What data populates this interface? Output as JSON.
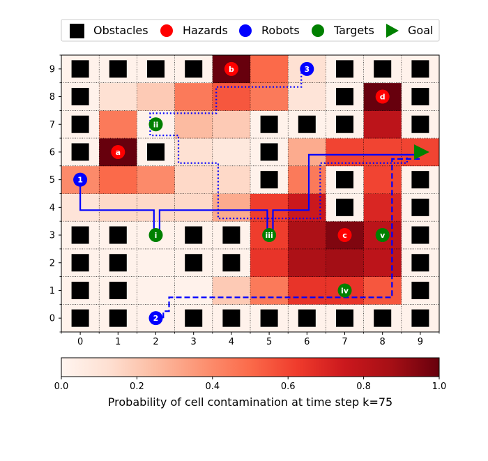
{
  "chart_data": {
    "type": "heatmap",
    "title": "",
    "xlabel": "",
    "ylabel": "",
    "x_ticks": [
      0,
      1,
      2,
      3,
      4,
      5,
      6,
      7,
      8,
      9
    ],
    "y_ticks": [
      0,
      1,
      2,
      3,
      4,
      5,
      6,
      7,
      8,
      9
    ],
    "xlim": [
      -0.5,
      9.5
    ],
    "ylim": [
      -0.5,
      9.5
    ],
    "grid": "dotted",
    "colormap": "Reds",
    "contamination": [
      [
        0.02,
        0.02,
        0.02,
        0.02,
        0.02,
        0.02,
        0.02,
        0.02,
        0.02,
        0.02
      ],
      [
        0.02,
        0.02,
        0.02,
        0.02,
        0.2,
        0.45,
        0.65,
        0.65,
        0.55,
        0.02
      ],
      [
        0.02,
        0.02,
        0.02,
        0.02,
        0.02,
        0.65,
        0.85,
        0.88,
        0.8,
        0.02
      ],
      [
        0.02,
        0.02,
        0.02,
        0.02,
        0.02,
        0.62,
        0.85,
        0.95,
        0.8,
        0.02
      ],
      [
        0.1,
        0.15,
        0.15,
        0.15,
        0.3,
        0.62,
        0.75,
        0.02,
        0.7,
        0.02
      ],
      [
        0.4,
        0.5,
        0.4,
        0.15,
        0.15,
        0.02,
        0.45,
        0.02,
        0.6,
        0.02
      ],
      [
        0.02,
        1.0,
        0.02,
        0.12,
        0.08,
        0.02,
        0.3,
        0.6,
        0.6,
        0.6
      ],
      [
        0.02,
        0.45,
        0.02,
        0.25,
        0.2,
        0.02,
        0.02,
        0.02,
        0.8,
        0.02
      ],
      [
        0.02,
        0.12,
        0.2,
        0.45,
        0.55,
        0.45,
        0.1,
        0.02,
        1.0,
        0.02
      ],
      [
        0.02,
        0.02,
        0.02,
        0.02,
        1.0,
        0.5,
        0.12,
        0.02,
        0.02,
        0.02
      ]
    ],
    "obstacles": [
      [
        0,
        0
      ],
      [
        1,
        0
      ],
      [
        3,
        0
      ],
      [
        4,
        0
      ],
      [
        5,
        0
      ],
      [
        6,
        0
      ],
      [
        7,
        0
      ],
      [
        8,
        0
      ],
      [
        9,
        0
      ],
      [
        0,
        1
      ],
      [
        1,
        1
      ],
      [
        9,
        1
      ],
      [
        0,
        2
      ],
      [
        1,
        2
      ],
      [
        3,
        2
      ],
      [
        4,
        2
      ],
      [
        9,
        2
      ],
      [
        0,
        3
      ],
      [
        1,
        3
      ],
      [
        3,
        3
      ],
      [
        4,
        3
      ],
      [
        9,
        3
      ],
      [
        7,
        4
      ],
      [
        9,
        4
      ],
      [
        5,
        5
      ],
      [
        7,
        5
      ],
      [
        9,
        5
      ],
      [
        0,
        6
      ],
      [
        2,
        6
      ],
      [
        5,
        6
      ],
      [
        0,
        7
      ],
      [
        5,
        7
      ],
      [
        6,
        7
      ],
      [
        7,
        7
      ],
      [
        9,
        7
      ],
      [
        0,
        8
      ],
      [
        7,
        8
      ],
      [
        9,
        8
      ],
      [
        0,
        9
      ],
      [
        1,
        9
      ],
      [
        2,
        9
      ],
      [
        3,
        9
      ],
      [
        7,
        9
      ],
      [
        8,
        9
      ],
      [
        9,
        9
      ]
    ],
    "hazards": [
      {
        "label": "a",
        "x": 1,
        "y": 6
      },
      {
        "label": "b",
        "x": 4,
        "y": 9
      },
      {
        "label": "c",
        "x": 7,
        "y": 3
      },
      {
        "label": "d",
        "x": 8,
        "y": 8
      }
    ],
    "robots": [
      {
        "label": "1",
        "x": 0,
        "y": 5
      },
      {
        "label": "2",
        "x": 2,
        "y": 0
      },
      {
        "label": "3",
        "x": 6,
        "y": 9
      }
    ],
    "targets": [
      {
        "label": "i",
        "x": 2,
        "y": 3
      },
      {
        "label": "ii",
        "x": 2,
        "y": 7
      },
      {
        "label": "iii",
        "x": 5,
        "y": 3
      },
      {
        "label": "iv",
        "x": 7,
        "y": 1
      },
      {
        "label": "v",
        "x": 8,
        "y": 3
      }
    ],
    "goal": {
      "x": 9,
      "y": 6
    },
    "paths": [
      {
        "robot": "1",
        "style": "solid",
        "points": [
          [
            0,
            5
          ],
          [
            0,
            3.9
          ],
          [
            1.95,
            3.9
          ],
          [
            1.95,
            3
          ],
          [
            2.1,
            3
          ],
          [
            2.1,
            3.9
          ],
          [
            4.95,
            3.9
          ],
          [
            4.95,
            3
          ],
          [
            5.1,
            3
          ],
          [
            5.1,
            3.9
          ],
          [
            6.05,
            3.9
          ],
          [
            6.05,
            5.9
          ],
          [
            9,
            5.9
          ],
          [
            9,
            6
          ]
        ]
      },
      {
        "robot": "2",
        "style": "dashed",
        "points": [
          [
            2.2,
            0
          ],
          [
            2.2,
            0.25
          ],
          [
            2.35,
            0.25
          ],
          [
            2.35,
            0.75
          ],
          [
            8.25,
            0.75
          ],
          [
            8.25,
            5.75
          ],
          [
            9,
            5.75
          ]
        ]
      },
      {
        "robot": "3",
        "style": "dotted",
        "points": [
          [
            5.85,
            9
          ],
          [
            5.85,
            8.35
          ],
          [
            3.6,
            8.35
          ],
          [
            3.6,
            7.4
          ],
          [
            1.85,
            7.4
          ],
          [
            1.85,
            6.6
          ],
          [
            2.6,
            6.6
          ],
          [
            2.6,
            5.6
          ],
          [
            3.65,
            5.6
          ],
          [
            3.65,
            3.6
          ],
          [
            6.35,
            3.6
          ],
          [
            6.35,
            5.6
          ],
          [
            8.65,
            5.6
          ],
          [
            8.65,
            6
          ]
        ]
      }
    ],
    "legend": {
      "placement": "top",
      "entries": [
        "Obstacles",
        "Hazards",
        "Robots",
        "Targets",
        "Goal"
      ]
    },
    "colorbar": {
      "label": "Probability of cell contamination at time step k=75",
      "min": 0.0,
      "max": 1.0,
      "ticks": [
        "0.0",
        "0.2",
        "0.4",
        "0.6",
        "0.8",
        "1.0"
      ]
    },
    "colors": {
      "obstacle": "#000000",
      "hazard": "#ff0000",
      "robot": "#0000ff",
      "target": "#008000",
      "goal": "#008000",
      "path": "#0000ff"
    }
  }
}
